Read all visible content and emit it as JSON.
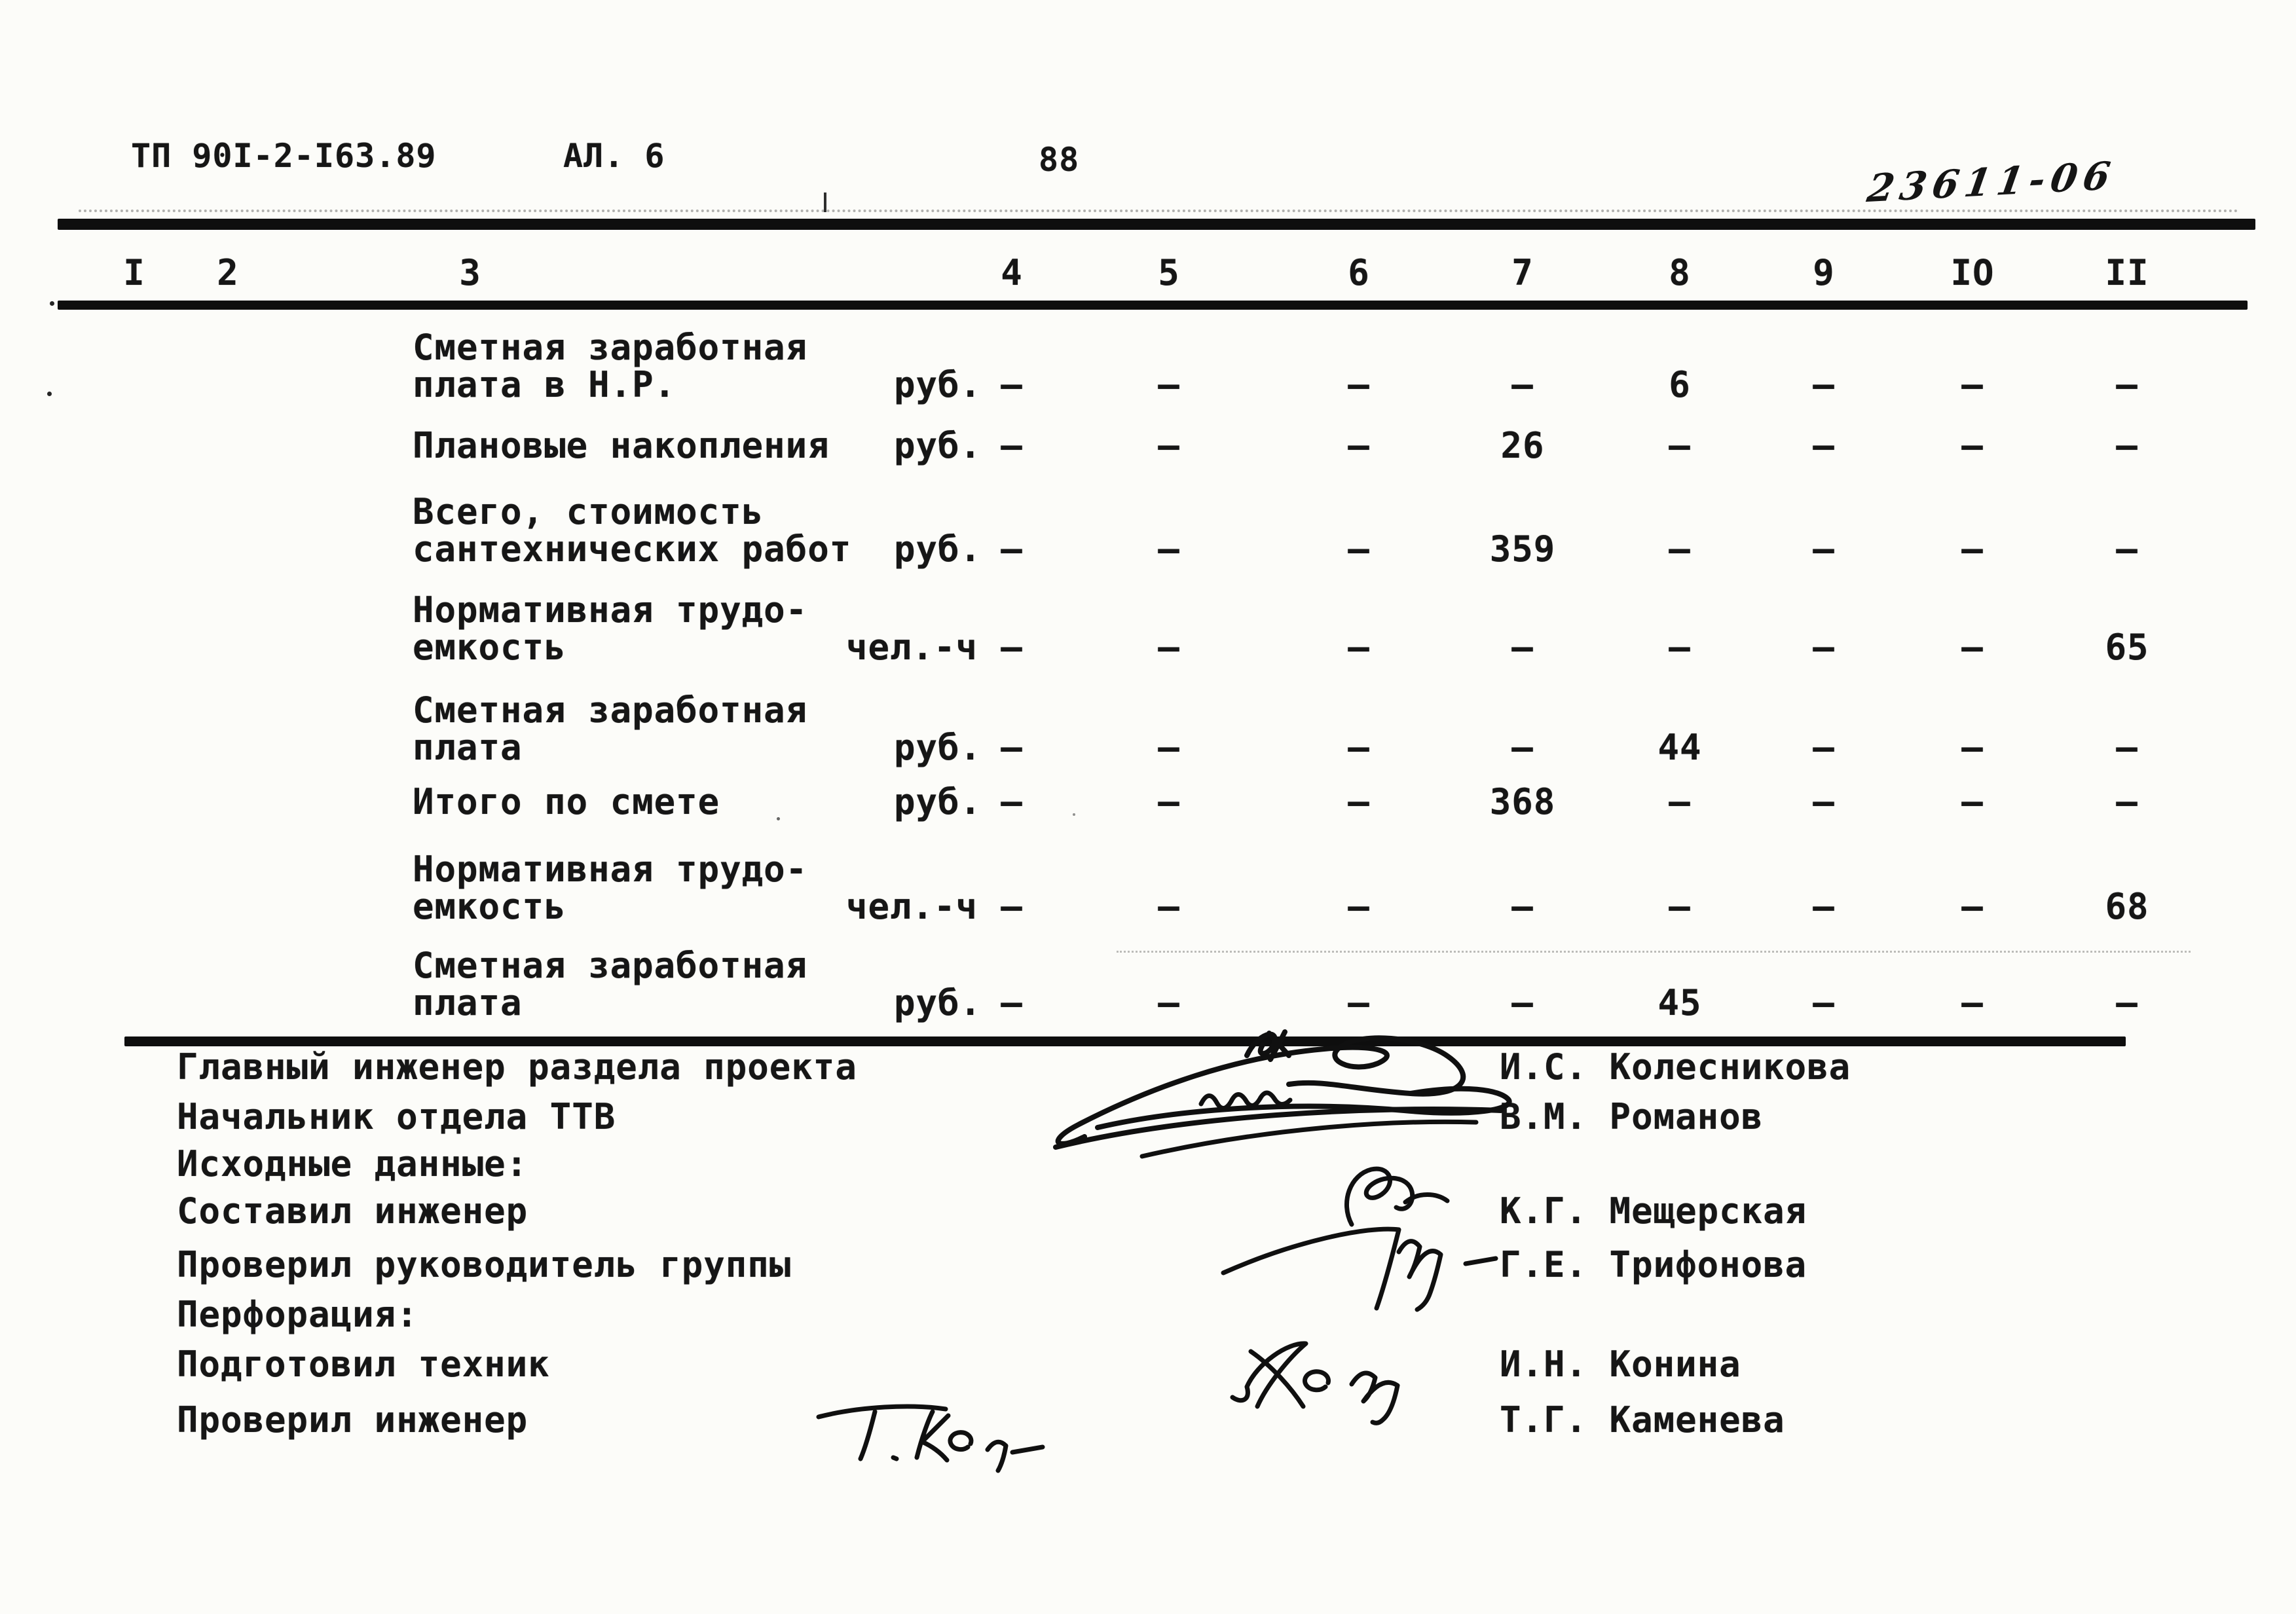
{
  "header": {
    "doc_code": "ТП 90I-2-I63.89",
    "sheet": "АЛ. 6",
    "page": "88",
    "handwritten_code": "23611-06"
  },
  "table": {
    "column_numbers": [
      "I",
      "2",
      "3",
      "4",
      "5",
      "6",
      "7",
      "8",
      "9",
      "IO",
      "II"
    ],
    "rows": [
      {
        "label_lines": [
          "Сметная заработная",
          "плата в Н.Р."
        ],
        "unit": "руб.",
        "values": [
          "–",
          "–",
          "–",
          "–",
          "6",
          "–",
          "–",
          "–"
        ]
      },
      {
        "label_lines": [
          "Плановые накопления"
        ],
        "unit": "руб.",
        "values": [
          "–",
          "–",
          "–",
          "26",
          "–",
          "–",
          "–",
          "–"
        ]
      },
      {
        "label_lines": [
          "Всего, стоимость",
          "сантехнических работ"
        ],
        "unit": "руб.",
        "values": [
          "–",
          "–",
          "–",
          "359",
          "–",
          "–",
          "–",
          "–"
        ]
      },
      {
        "label_lines": [
          "Нормативная трудо-",
          "емкость"
        ],
        "unit": "чел.-ч",
        "values": [
          "–",
          "–",
          "–",
          "–",
          "–",
          "–",
          "–",
          "65"
        ]
      },
      {
        "label_lines": [
          "Сметная заработная",
          "плата"
        ],
        "unit": "руб.",
        "values": [
          "–",
          "–",
          "–",
          "–",
          "44",
          "–",
          "–",
          "–"
        ]
      },
      {
        "label_lines": [
          "Итого по смете"
        ],
        "unit": "руб.",
        "values": [
          "–",
          "–",
          "–",
          "368",
          "–",
          "–",
          "–",
          "–"
        ]
      },
      {
        "label_lines": [
          "Нормативная трудо-",
          "емкость"
        ],
        "unit": "чел.-ч",
        "values": [
          "–",
          "–",
          "–",
          "–",
          "–",
          "–",
          "–",
          "68"
        ]
      },
      {
        "label_lines": [
          "Сметная заработная",
          "плата"
        ],
        "unit": "руб.",
        "values": [
          "–",
          "–",
          "–",
          "–",
          "45",
          "–",
          "–",
          "–"
        ]
      }
    ]
  },
  "footer": {
    "entries": [
      {
        "role": "Главный инженер раздела проекта",
        "name": "И.С. Колесникова"
      },
      {
        "role": "Начальник отдела ТТВ",
        "name": "В.М. Романов"
      },
      {
        "role": "Исходные данные:",
        "name": ""
      },
      {
        "role": "Составил инженер",
        "name": "К.Г. Мещерская"
      },
      {
        "role": "Проверил руководитель группы",
        "name": "Г.Е. Трифонова"
      },
      {
        "role": "Перфорация:",
        "name": ""
      },
      {
        "role": "Подготовил техник",
        "name": "И.Н. Конина"
      },
      {
        "role": "Проверил инженер",
        "name": "Т.Г. Каменева"
      }
    ]
  }
}
